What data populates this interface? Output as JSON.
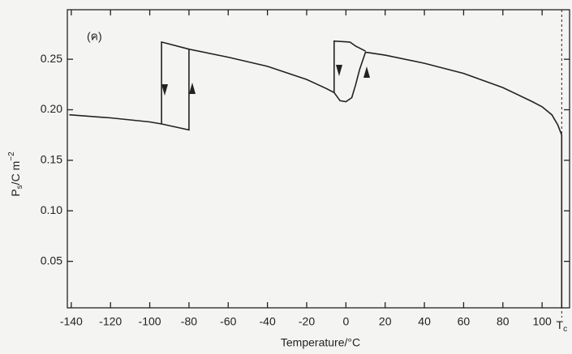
{
  "chart_data": {
    "type": "line",
    "panel_label": "(ค)",
    "xlabel": "Temperature/°C",
    "ylabel": {
      "symbol": "P",
      "subscript": "s",
      "unit": "/C m",
      "exponent": "−2"
    },
    "annotation": {
      "symbol": "T",
      "subscript": "c",
      "x": 110
    },
    "color": "#222222",
    "x": [
      -141,
      -120,
      -100,
      -94,
      -80,
      -80,
      -60,
      -40,
      -20,
      -10,
      -6,
      -3,
      0,
      3,
      5,
      7,
      10,
      20,
      40,
      60,
      80,
      95,
      100,
      105,
      108,
      110,
      110,
      null,
      -94,
      -94,
      -80,
      null,
      -6,
      -6,
      2,
      5,
      10
    ],
    "values": [
      0.195,
      0.192,
      0.188,
      0.186,
      0.18,
      0.26,
      0.252,
      0.243,
      0.23,
      0.221,
      0.217,
      0.209,
      0.208,
      0.212,
      0.225,
      0.24,
      0.257,
      0.254,
      0.246,
      0.236,
      0.222,
      0.208,
      0.203,
      0.195,
      0.185,
      0.175,
      0.004,
      null,
      0.186,
      0.267,
      0.26,
      null,
      0.217,
      0.268,
      0.267,
      0.263,
      0.258
    ],
    "xlim": [
      -142,
      114
    ],
    "ylim": [
      0.004,
      0.299
    ],
    "xticks": [
      -140,
      -120,
      -100,
      -80,
      -60,
      -40,
      -20,
      0,
      20,
      40,
      60,
      80,
      100
    ],
    "yticks": [
      0.05,
      {
        "value": 0.1,
        "label": "0.10"
      },
      0.15,
      {
        "value": 0.2,
        "label": "0.20"
      },
      0.25
    ]
  }
}
